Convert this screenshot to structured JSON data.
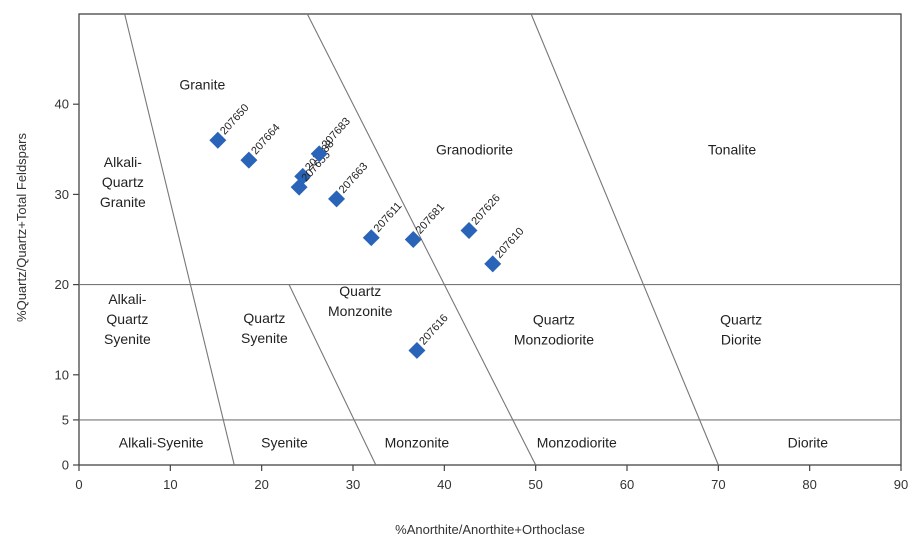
{
  "chart_data": {
    "type": "scatter",
    "title": "",
    "xlabel": "%Anorthite/Anorthite+Orthoclase",
    "ylabel": "%Quartz/Quartz+Total Feldspars",
    "xlim": [
      0,
      90
    ],
    "ylim": [
      0,
      50
    ],
    "xticks": [
      0,
      10,
      20,
      30,
      40,
      50,
      60,
      70,
      80,
      90
    ],
    "yticks": [
      0,
      5,
      10,
      20,
      30,
      40
    ],
    "grid": false,
    "point_color": "#2a64b8",
    "points": [
      {
        "id": "207650",
        "x": 15.2,
        "y": 36.0
      },
      {
        "id": "207664",
        "x": 18.6,
        "y": 33.8
      },
      {
        "id": "207688",
        "x": 24.5,
        "y": 32.0
      },
      {
        "id": "207655",
        "x": 24.1,
        "y": 30.8
      },
      {
        "id": "207683",
        "x": 26.3,
        "y": 34.5
      },
      {
        "id": "207663",
        "x": 28.2,
        "y": 29.5
      },
      {
        "id": "207611",
        "x": 32.0,
        "y": 25.2
      },
      {
        "id": "207681",
        "x": 36.6,
        "y": 25.0
      },
      {
        "id": "207626",
        "x": 42.7,
        "y": 26.0
      },
      {
        "id": "207610",
        "x": 45.3,
        "y": 22.3
      },
      {
        "id": "207616",
        "x": 37.0,
        "y": 12.7
      }
    ],
    "fields": [
      {
        "name": "granite",
        "lines": [
          "Granite"
        ],
        "x": 13.5,
        "y": 42.2
      },
      {
        "name": "alkali-quartz-granite",
        "lines": [
          "Alkali-",
          "Quartz",
          "Granite"
        ],
        "x": 4.8,
        "y": 31.4
      },
      {
        "name": "granodiorite",
        "lines": [
          "Granodiorite"
        ],
        "x": 43.3,
        "y": 35.0
      },
      {
        "name": "tonalite",
        "lines": [
          "Tonalite"
        ],
        "x": 71.5,
        "y": 35.0
      },
      {
        "name": "alkali-quartz-syenite",
        "lines": [
          "Alkali-",
          "Quartz",
          "Syenite"
        ],
        "x": 5.3,
        "y": 16.2
      },
      {
        "name": "quartz-syenite",
        "lines": [
          "Quartz",
          "Syenite"
        ],
        "x": 20.3,
        "y": 15.2
      },
      {
        "name": "quartz-monzonite",
        "lines": [
          "Quartz",
          "Monzonite"
        ],
        "x": 30.8,
        "y": 18.2
      },
      {
        "name": "quartz-monzodiorite",
        "lines": [
          "Quartz",
          "Monzodiorite"
        ],
        "x": 52.0,
        "y": 15.0
      },
      {
        "name": "quartz-diorite",
        "lines": [
          "Quartz",
          "Diorite"
        ],
        "x": 72.5,
        "y": 15.0
      },
      {
        "name": "alkali-syenite",
        "lines": [
          "Alkali-Syenite"
        ],
        "x": 9.0,
        "y": 2.5
      },
      {
        "name": "syenite",
        "lines": [
          "Syenite"
        ],
        "x": 22.5,
        "y": 2.5
      },
      {
        "name": "monzonite",
        "lines": [
          "Monzonite"
        ],
        "x": 37.0,
        "y": 2.5
      },
      {
        "name": "monzodiorite",
        "lines": [
          "Monzodiorite"
        ],
        "x": 54.5,
        "y": 2.5
      },
      {
        "name": "diorite",
        "lines": [
          "Diorite"
        ],
        "x": 79.8,
        "y": 2.5
      }
    ],
    "boundaries": [
      {
        "name": "boundary-horizontal-20",
        "from": [
          0,
          20
        ],
        "to": [
          90,
          20
        ]
      },
      {
        "name": "boundary-horizontal-5",
        "from": [
          0,
          5
        ],
        "to": [
          90,
          5
        ]
      },
      {
        "name": "boundary-alkali-granite",
        "from": [
          5,
          50
        ],
        "to": [
          17,
          0
        ]
      },
      {
        "name": "boundary-granite-granodiorite",
        "from": [
          25,
          50
        ],
        "to": [
          50,
          0
        ]
      },
      {
        "name": "boundary-granodiorite-tonalite",
        "from": [
          49.5,
          50
        ],
        "to": [
          70,
          0
        ]
      },
      {
        "name": "boundary-syenite-monzonite",
        "from": [
          23,
          20
        ],
        "to": [
          32.5,
          0
        ]
      }
    ]
  }
}
